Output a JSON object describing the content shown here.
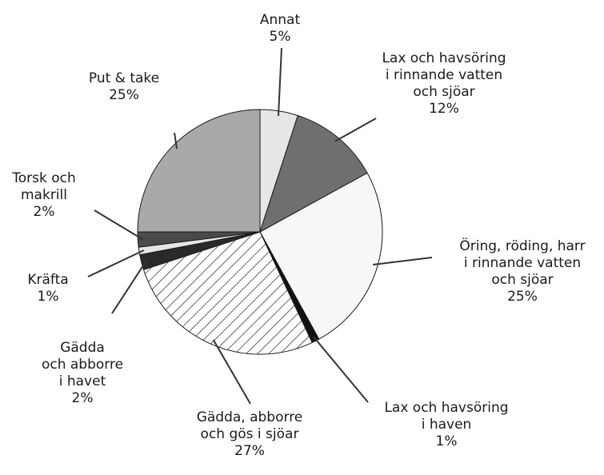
{
  "chart_data": {
    "type": "pie",
    "slices": [
      {
        "lines": [
          "Annat",
          "5%"
        ],
        "value": 5,
        "color": "#e6e6e6",
        "pattern": "none"
      },
      {
        "lines": [
          "Lax och havsöring",
          "i rinnande vatten",
          "och sjöar",
          "12%"
        ],
        "value": 12,
        "color": "#6f6f6f",
        "pattern": "none"
      },
      {
        "lines": [
          "Öring, röding, harr",
          "i rinnande vatten",
          "och sjöar",
          "25%"
        ],
        "value": 25,
        "color": "#f7f7f7",
        "pattern": "none"
      },
      {
        "lines": [
          "Lax och havsöring",
          "i haven",
          "1%"
        ],
        "value": 1,
        "color": "#111111",
        "pattern": "none"
      },
      {
        "lines": [
          "Gädda, abborre",
          "och gös i sjöar",
          "27%"
        ],
        "value": 27,
        "color": "#ffffff",
        "pattern": "diagonal-hatch"
      },
      {
        "lines": [
          "Gädda",
          "och abborre",
          "i havet",
          "2%"
        ],
        "value": 2,
        "color": "#2a2a2a",
        "pattern": "none"
      },
      {
        "lines": [
          "Kräfta",
          "1%"
        ],
        "value": 1,
        "color": "#e6e6e6",
        "pattern": "none"
      },
      {
        "lines": [
          "Torsk och",
          "makrill",
          "2%"
        ],
        "value": 2,
        "color": "#4a4a4a",
        "pattern": "none"
      },
      {
        "lines": [
          "Put & take",
          "25%"
        ],
        "value": 25,
        "color": "#a9a9a9",
        "pattern": "none"
      }
    ]
  }
}
